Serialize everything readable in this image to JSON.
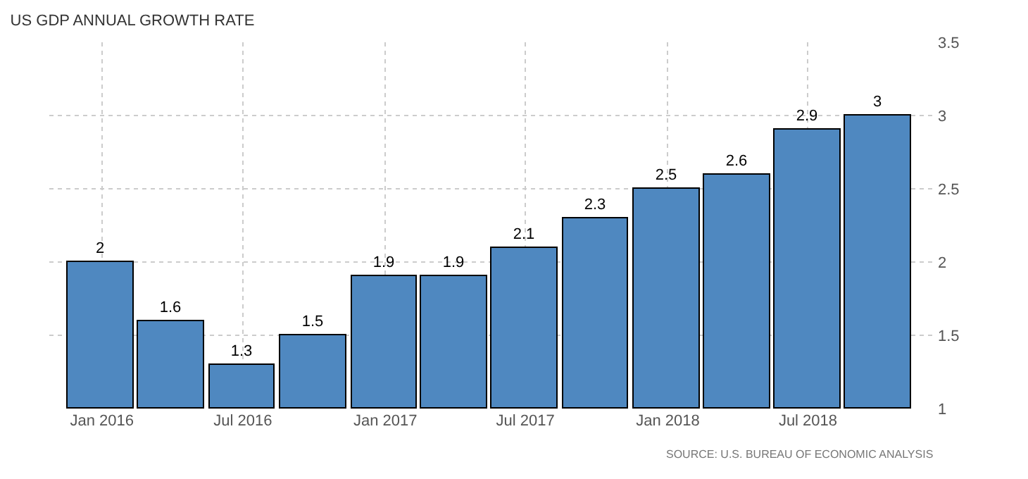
{
  "chart_data": {
    "type": "bar",
    "title": "US GDP ANNUAL GROWTH RATE",
    "x": [
      "2015-12-31",
      "2016-03-31",
      "2016-06-30",
      "2016-09-30",
      "2016-12-31",
      "2017-03-31",
      "2017-06-30",
      "2017-09-30",
      "2017-12-31",
      "2018-03-31",
      "2018-06-30",
      "2018-09-30"
    ],
    "values": [
      2,
      1.6,
      1.3,
      1.5,
      1.9,
      1.9,
      2.1,
      2.3,
      2.5,
      2.6,
      2.9,
      3
    ],
    "color": "#4f88c0",
    "data_labels": true,
    "xlim": [
      "2015-10-25",
      "2018-12-14"
    ],
    "xticks": [
      {
        "value": "2016-01-01",
        "label": "Jan 2016"
      },
      {
        "value": "2016-07-01",
        "label": "Jul 2016"
      },
      {
        "value": "2017-01-01",
        "label": "Jan 2017"
      },
      {
        "value": "2017-07-01",
        "label": "Jul 2017"
      },
      {
        "value": "2018-01-01",
        "label": "Jan 2018"
      },
      {
        "value": "2018-07-01",
        "label": "Jul 2018"
      }
    ],
    "ylim": [
      1,
      3.5
    ],
    "yticks": [
      1,
      1.5,
      2,
      2.5,
      3,
      3.5
    ],
    "grid": true,
    "annotations": [
      "SOURCE: U.S. BUREAU OF ECONOMIC ANALYSIS"
    ]
  }
}
